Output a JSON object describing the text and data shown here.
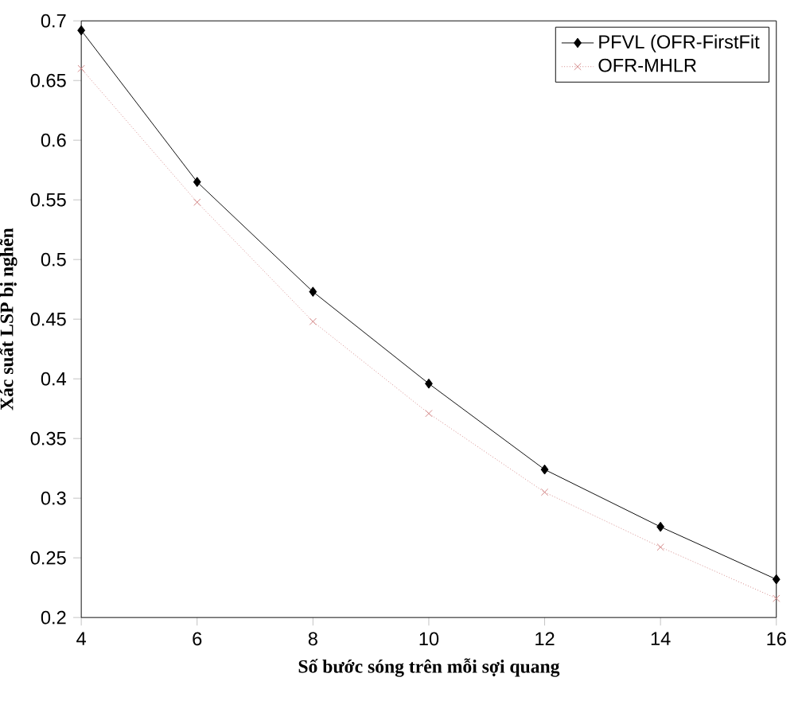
{
  "chart_data": {
    "type": "line",
    "xlabel": "Số bước sóng trên mỗi sợi quang",
    "ylabel": "Xác suất LSP bị nghẽn",
    "x": [
      4,
      6,
      8,
      10,
      12,
      14,
      16
    ],
    "series": [
      {
        "name": "PFVL (OFR-FirstFit",
        "color": "#000000",
        "marker": "diamond",
        "line_style": "solid",
        "values": [
          0.692,
          0.565,
          0.473,
          0.396,
          0.324,
          0.276,
          0.232
        ]
      },
      {
        "name": "OFR-MHLR",
        "color": "#d08080",
        "marker": "cross",
        "line_style": "dotted",
        "values": [
          0.66,
          0.548,
          0.448,
          0.371,
          0.305,
          0.259,
          0.216
        ]
      }
    ],
    "xlim": [
      4,
      16
    ],
    "ylim": [
      0.2,
      0.7
    ],
    "xticks": [
      4,
      6,
      8,
      10,
      12,
      14,
      16
    ],
    "yticks": [
      0.2,
      0.25,
      0.3,
      0.35,
      0.4,
      0.45,
      0.5,
      0.55,
      0.6,
      0.65,
      0.7
    ],
    "grid": false,
    "legend": "top right"
  }
}
